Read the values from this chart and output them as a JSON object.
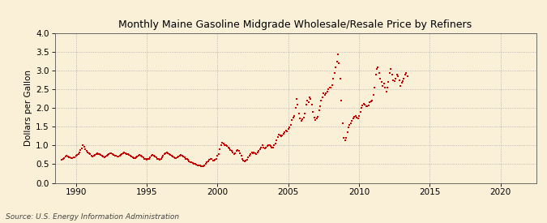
{
  "title": "Monthly Maine Gasoline Midgrade Wholesale/Resale Price by Refiners",
  "ylabel": "Dollars per Gallon",
  "source": "Source: U.S. Energy Information Administration",
  "background_color": "#faefd7",
  "plot_bg_color": "#faefd7",
  "dot_color": "#cc0000",
  "xlim": [
    1988.5,
    2022.5
  ],
  "ylim": [
    0.0,
    4.0
  ],
  "xticks": [
    1990,
    1995,
    2000,
    2005,
    2010,
    2015,
    2020
  ],
  "yticks": [
    0.0,
    0.5,
    1.0,
    1.5,
    2.0,
    2.5,
    3.0,
    3.5,
    4.0
  ],
  "data": [
    [
      1989.0,
      0.62
    ],
    [
      1989.08,
      0.64
    ],
    [
      1989.17,
      0.67
    ],
    [
      1989.25,
      0.7
    ],
    [
      1989.33,
      0.72
    ],
    [
      1989.42,
      0.71
    ],
    [
      1989.5,
      0.69
    ],
    [
      1989.58,
      0.68
    ],
    [
      1989.67,
      0.66
    ],
    [
      1989.75,
      0.67
    ],
    [
      1989.83,
      0.68
    ],
    [
      1989.92,
      0.69
    ],
    [
      1990.0,
      0.72
    ],
    [
      1990.08,
      0.75
    ],
    [
      1990.17,
      0.78
    ],
    [
      1990.25,
      0.82
    ],
    [
      1990.33,
      0.88
    ],
    [
      1990.42,
      0.92
    ],
    [
      1990.5,
      1.02
    ],
    [
      1990.58,
      0.96
    ],
    [
      1990.67,
      0.9
    ],
    [
      1990.75,
      0.85
    ],
    [
      1990.83,
      0.82
    ],
    [
      1990.92,
      0.8
    ],
    [
      1991.0,
      0.76
    ],
    [
      1991.08,
      0.72
    ],
    [
      1991.17,
      0.7
    ],
    [
      1991.25,
      0.72
    ],
    [
      1991.33,
      0.75
    ],
    [
      1991.42,
      0.78
    ],
    [
      1991.5,
      0.8
    ],
    [
      1991.58,
      0.78
    ],
    [
      1991.67,
      0.76
    ],
    [
      1991.75,
      0.74
    ],
    [
      1991.83,
      0.72
    ],
    [
      1991.92,
      0.7
    ],
    [
      1992.0,
      0.68
    ],
    [
      1992.08,
      0.7
    ],
    [
      1992.17,
      0.72
    ],
    [
      1992.25,
      0.75
    ],
    [
      1992.33,
      0.78
    ],
    [
      1992.42,
      0.8
    ],
    [
      1992.5,
      0.79
    ],
    [
      1992.58,
      0.77
    ],
    [
      1992.67,
      0.75
    ],
    [
      1992.75,
      0.73
    ],
    [
      1992.83,
      0.72
    ],
    [
      1992.92,
      0.71
    ],
    [
      1993.0,
      0.7
    ],
    [
      1993.08,
      0.72
    ],
    [
      1993.17,
      0.74
    ],
    [
      1993.25,
      0.78
    ],
    [
      1993.33,
      0.8
    ],
    [
      1993.42,
      0.82
    ],
    [
      1993.5,
      0.8
    ],
    [
      1993.58,
      0.78
    ],
    [
      1993.67,
      0.76
    ],
    [
      1993.75,
      0.74
    ],
    [
      1993.83,
      0.72
    ],
    [
      1993.92,
      0.7
    ],
    [
      1994.0,
      0.68
    ],
    [
      1994.08,
      0.67
    ],
    [
      1994.17,
      0.66
    ],
    [
      1994.25,
      0.68
    ],
    [
      1994.33,
      0.7
    ],
    [
      1994.42,
      0.73
    ],
    [
      1994.5,
      0.75
    ],
    [
      1994.58,
      0.73
    ],
    [
      1994.67,
      0.7
    ],
    [
      1994.75,
      0.68
    ],
    [
      1994.83,
      0.65
    ],
    [
      1994.92,
      0.63
    ],
    [
      1995.0,
      0.62
    ],
    [
      1995.08,
      0.63
    ],
    [
      1995.17,
      0.65
    ],
    [
      1995.25,
      0.68
    ],
    [
      1995.33,
      0.72
    ],
    [
      1995.42,
      0.74
    ],
    [
      1995.5,
      0.72
    ],
    [
      1995.58,
      0.7
    ],
    [
      1995.67,
      0.68
    ],
    [
      1995.75,
      0.65
    ],
    [
      1995.83,
      0.63
    ],
    [
      1995.92,
      0.61
    ],
    [
      1996.0,
      0.65
    ],
    [
      1996.08,
      0.68
    ],
    [
      1996.17,
      0.72
    ],
    [
      1996.25,
      0.76
    ],
    [
      1996.33,
      0.8
    ],
    [
      1996.42,
      0.82
    ],
    [
      1996.5,
      0.8
    ],
    [
      1996.58,
      0.78
    ],
    [
      1996.67,
      0.75
    ],
    [
      1996.75,
      0.72
    ],
    [
      1996.83,
      0.7
    ],
    [
      1996.92,
      0.68
    ],
    [
      1997.0,
      0.66
    ],
    [
      1997.08,
      0.67
    ],
    [
      1997.17,
      0.68
    ],
    [
      1997.25,
      0.7
    ],
    [
      1997.33,
      0.72
    ],
    [
      1997.42,
      0.74
    ],
    [
      1997.5,
      0.72
    ],
    [
      1997.58,
      0.7
    ],
    [
      1997.67,
      0.68
    ],
    [
      1997.75,
      0.65
    ],
    [
      1997.83,
      0.63
    ],
    [
      1997.92,
      0.61
    ],
    [
      1998.0,
      0.58
    ],
    [
      1998.08,
      0.56
    ],
    [
      1998.17,
      0.55
    ],
    [
      1998.25,
      0.54
    ],
    [
      1998.33,
      0.52
    ],
    [
      1998.42,
      0.5
    ],
    [
      1998.5,
      0.48
    ],
    [
      1998.58,
      0.47
    ],
    [
      1998.67,
      0.46
    ],
    [
      1998.75,
      0.46
    ],
    [
      1998.83,
      0.45
    ],
    [
      1998.92,
      0.44
    ],
    [
      1999.0,
      0.44
    ],
    [
      1999.08,
      0.46
    ],
    [
      1999.17,
      0.5
    ],
    [
      1999.25,
      0.55
    ],
    [
      1999.33,
      0.58
    ],
    [
      1999.42,
      0.62
    ],
    [
      1999.5,
      0.65
    ],
    [
      1999.58,
      0.63
    ],
    [
      1999.67,
      0.6
    ],
    [
      1999.75,
      0.6
    ],
    [
      1999.83,
      0.62
    ],
    [
      1999.92,
      0.65
    ],
    [
      2000.0,
      0.72
    ],
    [
      2000.08,
      0.78
    ],
    [
      2000.17,
      0.9
    ],
    [
      2000.25,
      1.0
    ],
    [
      2000.33,
      1.08
    ],
    [
      2000.42,
      1.05
    ],
    [
      2000.5,
      1.02
    ],
    [
      2000.58,
      1.0
    ],
    [
      2000.67,
      0.98
    ],
    [
      2000.75,
      0.95
    ],
    [
      2000.83,
      0.92
    ],
    [
      2000.92,
      0.88
    ],
    [
      2001.0,
      0.85
    ],
    [
      2001.08,
      0.82
    ],
    [
      2001.17,
      0.78
    ],
    [
      2001.25,
      0.8
    ],
    [
      2001.33,
      0.85
    ],
    [
      2001.42,
      0.88
    ],
    [
      2001.5,
      0.85
    ],
    [
      2001.58,
      0.8
    ],
    [
      2001.67,
      0.72
    ],
    [
      2001.75,
      0.65
    ],
    [
      2001.83,
      0.6
    ],
    [
      2001.92,
      0.58
    ],
    [
      2002.0,
      0.6
    ],
    [
      2002.08,
      0.62
    ],
    [
      2002.17,
      0.68
    ],
    [
      2002.25,
      0.72
    ],
    [
      2002.33,
      0.78
    ],
    [
      2002.42,
      0.82
    ],
    [
      2002.5,
      0.8
    ],
    [
      2002.58,
      0.82
    ],
    [
      2002.67,
      0.8
    ],
    [
      2002.75,
      0.78
    ],
    [
      2002.83,
      0.82
    ],
    [
      2002.92,
      0.85
    ],
    [
      2003.0,
      0.9
    ],
    [
      2003.08,
      0.95
    ],
    [
      2003.17,
      1.02
    ],
    [
      2003.25,
      0.95
    ],
    [
      2003.33,
      0.92
    ],
    [
      2003.42,
      0.95
    ],
    [
      2003.5,
      0.98
    ],
    [
      2003.58,
      1.0
    ],
    [
      2003.67,
      1.02
    ],
    [
      2003.75,
      0.98
    ],
    [
      2003.83,
      0.95
    ],
    [
      2003.92,
      0.95
    ],
    [
      2004.0,
      1.0
    ],
    [
      2004.08,
      1.05
    ],
    [
      2004.17,
      1.15
    ],
    [
      2004.25,
      1.22
    ],
    [
      2004.33,
      1.3
    ],
    [
      2004.42,
      1.28
    ],
    [
      2004.5,
      1.25
    ],
    [
      2004.58,
      1.28
    ],
    [
      2004.67,
      1.32
    ],
    [
      2004.75,
      1.35
    ],
    [
      2004.83,
      1.4
    ],
    [
      2004.92,
      1.38
    ],
    [
      2005.0,
      1.45
    ],
    [
      2005.08,
      1.48
    ],
    [
      2005.17,
      1.55
    ],
    [
      2005.25,
      1.68
    ],
    [
      2005.33,
      1.75
    ],
    [
      2005.42,
      1.8
    ],
    [
      2005.5,
      2.0
    ],
    [
      2005.58,
      2.25
    ],
    [
      2005.67,
      2.1
    ],
    [
      2005.75,
      1.85
    ],
    [
      2005.83,
      1.72
    ],
    [
      2005.92,
      1.65
    ],
    [
      2006.0,
      1.7
    ],
    [
      2006.08,
      1.75
    ],
    [
      2006.17,
      1.85
    ],
    [
      2006.25,
      2.1
    ],
    [
      2006.33,
      2.2
    ],
    [
      2006.42,
      2.15
    ],
    [
      2006.5,
      2.3
    ],
    [
      2006.58,
      2.25
    ],
    [
      2006.67,
      2.1
    ],
    [
      2006.75,
      1.9
    ],
    [
      2006.83,
      1.75
    ],
    [
      2006.92,
      1.68
    ],
    [
      2007.0,
      1.72
    ],
    [
      2007.08,
      1.78
    ],
    [
      2007.17,
      1.95
    ],
    [
      2007.25,
      2.05
    ],
    [
      2007.33,
      2.2
    ],
    [
      2007.42,
      2.3
    ],
    [
      2007.5,
      2.4
    ],
    [
      2007.58,
      2.35
    ],
    [
      2007.67,
      2.4
    ],
    [
      2007.75,
      2.45
    ],
    [
      2007.83,
      2.5
    ],
    [
      2007.92,
      2.55
    ],
    [
      2008.0,
      2.55
    ],
    [
      2008.08,
      2.62
    ],
    [
      2008.17,
      2.78
    ],
    [
      2008.25,
      2.95
    ],
    [
      2008.33,
      3.1
    ],
    [
      2008.42,
      3.25
    ],
    [
      2008.5,
      3.45
    ],
    [
      2008.58,
      3.2
    ],
    [
      2008.67,
      2.8
    ],
    [
      2008.75,
      2.2
    ],
    [
      2008.83,
      1.6
    ],
    [
      2008.92,
      1.2
    ],
    [
      2009.0,
      1.15
    ],
    [
      2009.08,
      1.2
    ],
    [
      2009.17,
      1.35
    ],
    [
      2009.25,
      1.48
    ],
    [
      2009.33,
      1.55
    ],
    [
      2009.42,
      1.6
    ],
    [
      2009.5,
      1.65
    ],
    [
      2009.58,
      1.72
    ],
    [
      2009.67,
      1.78
    ],
    [
      2009.75,
      1.8
    ],
    [
      2009.83,
      1.75
    ],
    [
      2009.92,
      1.72
    ],
    [
      2010.0,
      1.8
    ],
    [
      2010.08,
      1.9
    ],
    [
      2010.17,
      2.0
    ],
    [
      2010.25,
      2.08
    ],
    [
      2010.33,
      2.12
    ],
    [
      2010.42,
      2.1
    ],
    [
      2010.5,
      2.05
    ],
    [
      2010.58,
      2.05
    ],
    [
      2010.67,
      2.08
    ],
    [
      2010.75,
      2.15
    ],
    [
      2010.83,
      2.18
    ],
    [
      2010.92,
      2.2
    ],
    [
      2011.0,
      2.35
    ],
    [
      2011.08,
      2.55
    ],
    [
      2011.17,
      2.9
    ],
    [
      2011.25,
      3.05
    ],
    [
      2011.33,
      3.1
    ],
    [
      2011.42,
      2.95
    ],
    [
      2011.5,
      2.8
    ],
    [
      2011.58,
      2.7
    ],
    [
      2011.67,
      2.6
    ],
    [
      2011.75,
      2.65
    ],
    [
      2011.83,
      2.55
    ],
    [
      2011.92,
      2.45
    ],
    [
      2012.0,
      2.55
    ],
    [
      2012.08,
      2.7
    ],
    [
      2012.17,
      2.95
    ],
    [
      2012.25,
      3.05
    ],
    [
      2012.33,
      2.9
    ],
    [
      2012.42,
      2.75
    ],
    [
      2012.5,
      2.72
    ],
    [
      2012.58,
      2.78
    ],
    [
      2012.67,
      2.9
    ],
    [
      2012.75,
      2.85
    ],
    [
      2012.83,
      2.75
    ],
    [
      2012.92,
      2.6
    ],
    [
      2013.0,
      2.68
    ],
    [
      2013.08,
      2.72
    ],
    [
      2013.17,
      2.8
    ],
    [
      2013.25,
      2.9
    ],
    [
      2013.33,
      2.95
    ],
    [
      2013.42,
      2.85
    ]
  ]
}
